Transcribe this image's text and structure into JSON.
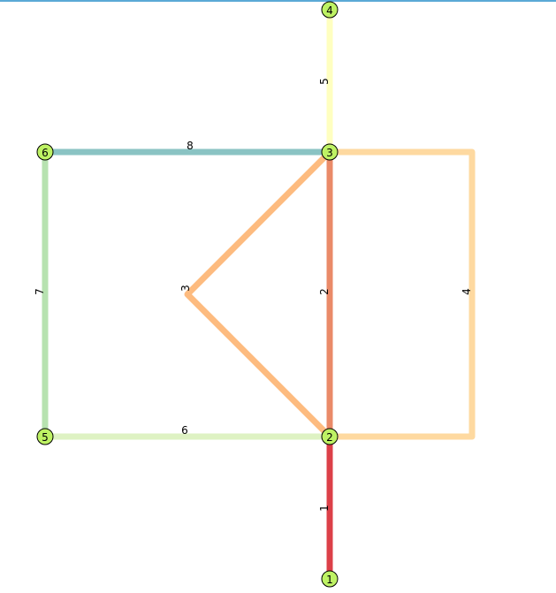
{
  "colors": {
    "node_fill": "#bef264",
    "top_bar": "#5aa9d6"
  },
  "nodes": [
    {
      "id": "1",
      "label": "1"
    },
    {
      "id": "2",
      "label": "2"
    },
    {
      "id": "3",
      "label": "3"
    },
    {
      "id": "4",
      "label": "4"
    },
    {
      "id": "5",
      "label": "5"
    },
    {
      "id": "6",
      "label": "6"
    }
  ],
  "edges": [
    {
      "id": "e1",
      "from": "1",
      "to": "2",
      "label": "1",
      "color": "#dc4048"
    },
    {
      "id": "e2",
      "from": "2",
      "to": "3",
      "label": "2",
      "color": "#ea8a68"
    },
    {
      "id": "e3",
      "from": "2",
      "to": "3",
      "label": "3",
      "color": "#fdbb7f"
    },
    {
      "id": "e4",
      "from": "2",
      "to": "3",
      "label": "4",
      "color": "#fed9a0"
    },
    {
      "id": "e5",
      "from": "3",
      "to": "4",
      "label": "5",
      "color": "#ffffc0"
    },
    {
      "id": "e6",
      "from": "2",
      "to": "5",
      "label": "6",
      "color": "#def2c3"
    },
    {
      "id": "e7",
      "from": "5",
      "to": "6",
      "label": "7",
      "color": "#b7e2b0"
    },
    {
      "id": "e8",
      "from": "6",
      "to": "3",
      "label": "8",
      "color": "#8ac3c3"
    }
  ]
}
